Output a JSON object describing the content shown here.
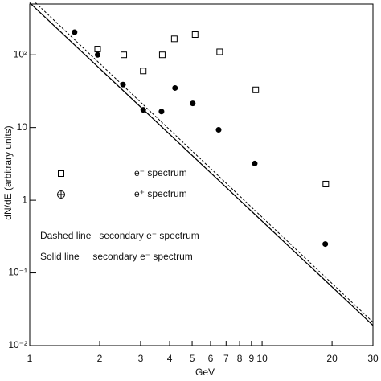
{
  "chart_data": {
    "type": "scatter",
    "xlabel": "GeV",
    "ylabel": "dN/dE (arbitrary units)",
    "xscale": "log",
    "yscale": "log",
    "xlim": [
      1,
      30
    ],
    "ylim": [
      0.01,
      500
    ],
    "xticks": [
      1,
      2,
      3,
      4,
      5,
      6,
      7,
      8,
      9,
      10,
      20,
      30
    ],
    "yticks": [
      {
        "value": 0.01,
        "label": "10⁻²"
      },
      {
        "value": 0.1,
        "label": "10⁻¹"
      },
      1,
      10,
      {
        "value": 100,
        "label": "10²"
      }
    ],
    "series": [
      {
        "name": "e⁻ spectrum",
        "marker": "square",
        "color": "#000000",
        "x": [
          1.96,
          2.54,
          3.08,
          3.72,
          4.19,
          5.15,
          6.57,
          9.39,
          18.8
        ],
        "values": [
          120,
          100,
          60,
          100,
          166,
          190,
          110,
          33,
          1.67
        ]
      },
      {
        "name": "e⁺ spectrum",
        "marker": "circle",
        "color": "#000000",
        "x": [
          1.56,
          1.96,
          2.52,
          3.08,
          3.69,
          4.22,
          5.03,
          6.5,
          9.3,
          18.7
        ],
        "values": [
          205,
          100,
          39,
          17.5,
          16.6,
          35,
          21.5,
          9.3,
          3.2,
          0.25
        ]
      }
    ],
    "lines": [
      {
        "dash": false,
        "x": [
          1,
          30
        ],
        "values": [
          520,
          0.019
        ]
      },
      {
        "dash": true,
        "x": [
          1.06,
          30
        ],
        "values": [
          520,
          0.021
        ]
      }
    ],
    "annotations": [
      "Dashed line   secondary e⁻ spectrum",
      "Solid line     secondary e⁻ spectrum"
    ]
  }
}
